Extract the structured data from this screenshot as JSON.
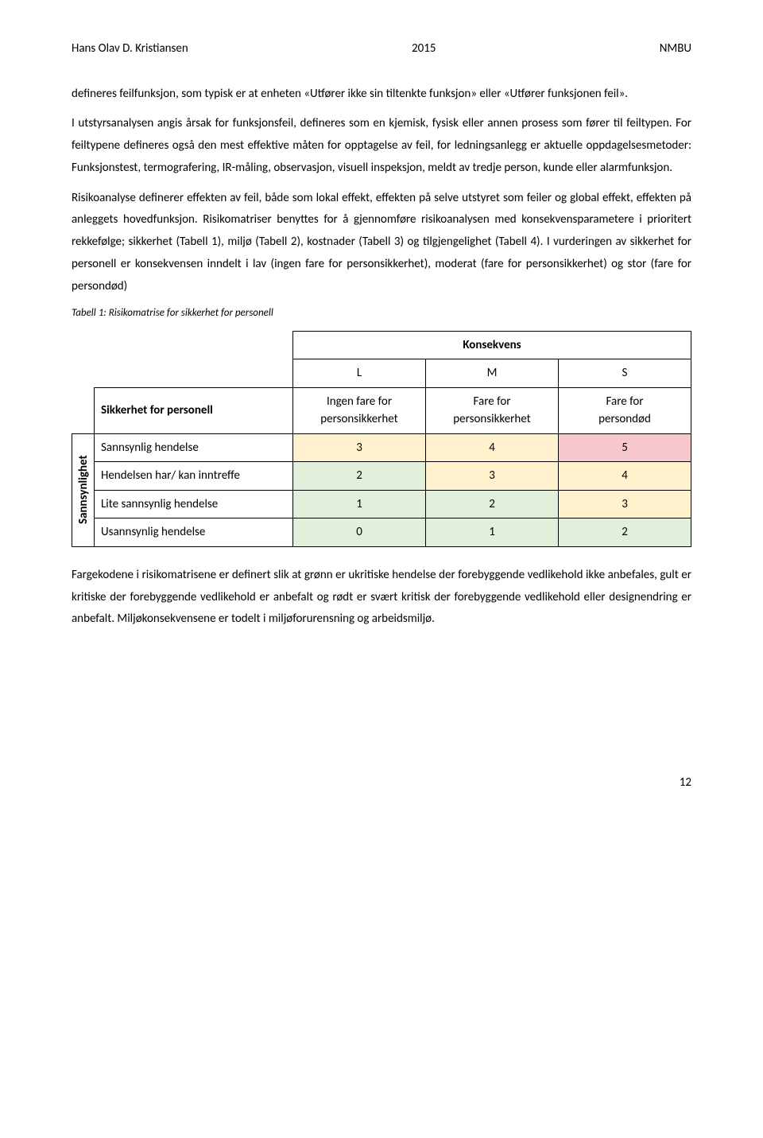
{
  "header": {
    "author": "Hans Olav D. Kristiansen",
    "year": "2015",
    "inst": "NMBU"
  },
  "para1": "defineres feilfunksjon, som typisk er at enheten «Utfører ikke sin tiltenkte funksjon» eller «Utfører funksjonen feil».",
  "para2": "I utstyrsanalysen angis årsak for funksjonsfeil, defineres som en kjemisk, fysisk eller annen prosess som fører til feiltypen. For feiltypene defineres også den mest effektive måten for opptagelse av feil, for ledningsanlegg er aktuelle oppdagelsesmetoder: Funksjonstest, termografering, IR-måling, observasjon, visuell inspeksjon, meldt av tredje person, kunde eller alarmfunksjon.",
  "para3": "Risikoanalyse definerer effekten av feil, både som lokal effekt, effekten på selve utstyret som feiler og global effekt, effekten på anleggets hovedfunksjon. Risikomatriser benyttes for å gjennomføre risikoanalysen med konsekvensparametere i prioritert rekkefølge; sikkerhet (Tabell 1), miljø (Tabell 2), kostnader (Tabell 3) og tilgjengelighet (Tabell 4). I vurderingen av sikkerhet for personell er konsekvensen inndelt i lav (ingen fare for personsikkerhet), moderat (fare for personsikkerhet) og stor (fare for persondød)",
  "caption": "Tabell 1: Risikomatrise for sikkerhet for personell",
  "table": {
    "konsekvens": "Konsekvens",
    "vaxis": "Sannsynlighet",
    "cols_code": [
      "L",
      "M",
      "S"
    ],
    "cols_top": [
      "Ingen fare for",
      "Fare for",
      "Fare for"
    ],
    "cols_bot": [
      "personsikkerhet",
      "personsikkerhet",
      "persondød"
    ],
    "row_header": "Sikkerhet for personell",
    "rows": [
      {
        "label": "Sannsynlig hendelse",
        "cells": [
          {
            "v": "3",
            "c": "#fff2cc"
          },
          {
            "v": "4",
            "c": "#fff2cc"
          },
          {
            "v": "5",
            "c": "#f7c7ce"
          }
        ]
      },
      {
        "label": "Hendelsen har/ kan inntreffe",
        "cells": [
          {
            "v": "2",
            "c": "#e2efda"
          },
          {
            "v": "3",
            "c": "#fff2cc"
          },
          {
            "v": "4",
            "c": "#fff2cc"
          }
        ]
      },
      {
        "label": "Lite sannsynlig hendelse",
        "cells": [
          {
            "v": "1",
            "c": "#e2efda"
          },
          {
            "v": "2",
            "c": "#e2efda"
          },
          {
            "v": "3",
            "c": "#fff2cc"
          }
        ]
      },
      {
        "label": "Usannsynlig hendelse",
        "cells": [
          {
            "v": "0",
            "c": "#e2efda"
          },
          {
            "v": "1",
            "c": "#e2efda"
          },
          {
            "v": "2",
            "c": "#e2efda"
          }
        ]
      }
    ]
  },
  "para4": "Fargekodene i risikomatrisene er definert slik at grønn er ukritiske hendelse der forebyggende vedlikehold ikke anbefales, gult er kritiske der forebyggende vedlikehold er anbefalt og rødt er svært kritisk der forebyggende vedlikehold eller designendring er anbefalt. Miljøkonsekvensene er todelt i miljøforurensning og arbeidsmiljø.",
  "pagenum": "12"
}
